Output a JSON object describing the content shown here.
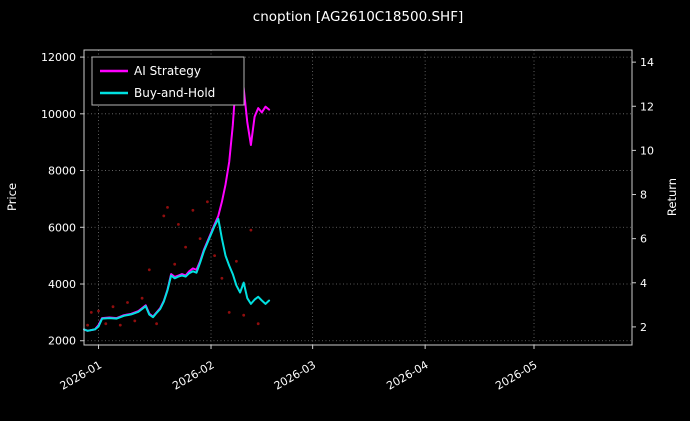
{
  "title": "cnoption [AG2610C18500.SHF]",
  "legend": {
    "items": [
      {
        "label": "AI Strategy",
        "color": "#ff00ff"
      },
      {
        "label": "Buy-and-Hold",
        "color": "#00e0e0"
      }
    ]
  },
  "chart_data": {
    "type": "line",
    "title": "cnoption [AG2610C18500.SHF]",
    "background": "#000000",
    "text_color": "#ffffff",
    "grid": true,
    "legend_position": "upper-left",
    "x_axis": {
      "tick_labels": [
        "2026-01",
        "2026-02",
        "2026-03",
        "2026-04",
        "2026-05"
      ],
      "tick_dates": [
        "2026-01-01",
        "2026-02-01",
        "2026-03-01",
        "2026-04-01",
        "2026-05-01"
      ],
      "range": [
        "2025-12-28",
        "2026-05-28"
      ]
    },
    "price_axis": {
      "label": "Price",
      "ticks": [
        2000,
        4000,
        6000,
        8000,
        10000,
        12000
      ],
      "range": [
        1850,
        12250
      ]
    },
    "return_axis": {
      "label": "Return",
      "ticks": [
        2,
        4,
        6,
        8,
        10,
        12,
        14
      ],
      "range": [
        1.18,
        14.55
      ]
    },
    "series": [
      {
        "name": "AI Strategy",
        "color": "#ff00ff",
        "axis": "price",
        "points": [
          [
            "2025-12-28",
            2400
          ],
          [
            "2025-12-29",
            2350
          ],
          [
            "2025-12-31",
            2400
          ],
          [
            "2026-01-01",
            2550
          ],
          [
            "2026-01-02",
            2800
          ],
          [
            "2026-01-04",
            2820
          ],
          [
            "2026-01-06",
            2800
          ],
          [
            "2026-01-08",
            2900
          ],
          [
            "2026-01-10",
            2950
          ],
          [
            "2026-01-12",
            3050
          ],
          [
            "2026-01-13",
            3150
          ],
          [
            "2026-01-14",
            3250
          ],
          [
            "2026-01-15",
            2950
          ],
          [
            "2026-01-16",
            2850
          ],
          [
            "2026-01-17",
            3000
          ],
          [
            "2026-01-18",
            3150
          ],
          [
            "2026-01-19",
            3400
          ],
          [
            "2026-01-20",
            3800
          ],
          [
            "2026-01-21",
            4350
          ],
          [
            "2026-01-22",
            4250
          ],
          [
            "2026-01-23",
            4300
          ],
          [
            "2026-01-24",
            4350
          ],
          [
            "2026-01-25",
            4300
          ],
          [
            "2026-01-26",
            4450
          ],
          [
            "2026-01-27",
            4550
          ],
          [
            "2026-01-28",
            4500
          ],
          [
            "2026-01-29",
            4800
          ],
          [
            "2026-01-30",
            5200
          ],
          [
            "2026-01-31",
            5500
          ],
          [
            "2026-02-01",
            5800
          ],
          [
            "2026-02-02",
            6100
          ],
          [
            "2026-02-03",
            6400
          ],
          [
            "2026-02-04",
            6900
          ],
          [
            "2026-02-05",
            7500
          ],
          [
            "2026-02-06",
            8300
          ],
          [
            "2026-02-07",
            9600
          ],
          [
            "2026-02-08",
            11400
          ],
          [
            "2026-02-09",
            11700
          ],
          [
            "2026-02-10",
            10900
          ],
          [
            "2026-02-11",
            9700
          ],
          [
            "2026-02-12",
            8900
          ],
          [
            "2026-02-13",
            9900
          ],
          [
            "2026-02-14",
            10200
          ],
          [
            "2026-02-15",
            10050
          ],
          [
            "2026-02-16",
            10250
          ],
          [
            "2026-02-17",
            10150
          ]
        ]
      },
      {
        "name": "Buy-and-Hold",
        "color": "#00e0e0",
        "axis": "price",
        "points": [
          [
            "2025-12-28",
            2400
          ],
          [
            "2025-12-29",
            2350
          ],
          [
            "2025-12-31",
            2400
          ],
          [
            "2026-01-01",
            2500
          ],
          [
            "2026-01-02",
            2780
          ],
          [
            "2026-01-04",
            2800
          ],
          [
            "2026-01-06",
            2780
          ],
          [
            "2026-01-08",
            2880
          ],
          [
            "2026-01-10",
            2930
          ],
          [
            "2026-01-12",
            3020
          ],
          [
            "2026-01-13",
            3120
          ],
          [
            "2026-01-14",
            3220
          ],
          [
            "2026-01-15",
            2920
          ],
          [
            "2026-01-16",
            2830
          ],
          [
            "2026-01-17",
            2980
          ],
          [
            "2026-01-18",
            3120
          ],
          [
            "2026-01-19",
            3380
          ],
          [
            "2026-01-20",
            3780
          ],
          [
            "2026-01-21",
            4300
          ],
          [
            "2026-01-22",
            4200
          ],
          [
            "2026-01-23",
            4260
          ],
          [
            "2026-01-24",
            4300
          ],
          [
            "2026-01-25",
            4260
          ],
          [
            "2026-01-26",
            4380
          ],
          [
            "2026-01-27",
            4450
          ],
          [
            "2026-01-28",
            4400
          ],
          [
            "2026-01-29",
            4750
          ],
          [
            "2026-01-30",
            5150
          ],
          [
            "2026-01-31",
            5450
          ],
          [
            "2026-02-01",
            5750
          ],
          [
            "2026-02-02",
            6050
          ],
          [
            "2026-02-03",
            6300
          ],
          [
            "2026-02-04",
            5600
          ],
          [
            "2026-02-05",
            5000
          ],
          [
            "2026-02-06",
            4650
          ],
          [
            "2026-02-07",
            4350
          ],
          [
            "2026-02-08",
            3950
          ],
          [
            "2026-02-09",
            3700
          ],
          [
            "2026-02-10",
            4050
          ],
          [
            "2026-02-11",
            3500
          ],
          [
            "2026-02-12",
            3300
          ],
          [
            "2026-02-13",
            3450
          ],
          [
            "2026-02-14",
            3550
          ],
          [
            "2026-02-15",
            3420
          ],
          [
            "2026-02-16",
            3300
          ],
          [
            "2026-02-17",
            3420
          ]
        ]
      }
    ],
    "scatter": {
      "name": "daily-price-dots",
      "color": "#a01010",
      "points": [
        [
          "2025-12-29",
          2550
        ],
        [
          "2025-12-30",
          3000
        ],
        [
          "2026-01-01",
          3050
        ],
        [
          "2026-01-03",
          2600
        ],
        [
          "2026-01-05",
          3200
        ],
        [
          "2026-01-07",
          2550
        ],
        [
          "2026-01-09",
          3350
        ],
        [
          "2026-01-11",
          2700
        ],
        [
          "2026-01-13",
          3500
        ],
        [
          "2026-01-15",
          4500
        ],
        [
          "2026-01-17",
          2600
        ],
        [
          "2026-01-19",
          6400
        ],
        [
          "2026-01-20",
          6700
        ],
        [
          "2026-01-22",
          4700
        ],
        [
          "2026-01-23",
          6100
        ],
        [
          "2026-01-25",
          5300
        ],
        [
          "2026-01-27",
          6600
        ],
        [
          "2026-01-29",
          5600
        ],
        [
          "2026-01-31",
          6900
        ],
        [
          "2026-02-02",
          5000
        ],
        [
          "2026-02-04",
          4200
        ],
        [
          "2026-02-06",
          3000
        ],
        [
          "2026-02-08",
          4800
        ],
        [
          "2026-02-10",
          2900
        ],
        [
          "2026-02-12",
          5900
        ],
        [
          "2026-02-14",
          2600
        ]
      ]
    }
  }
}
